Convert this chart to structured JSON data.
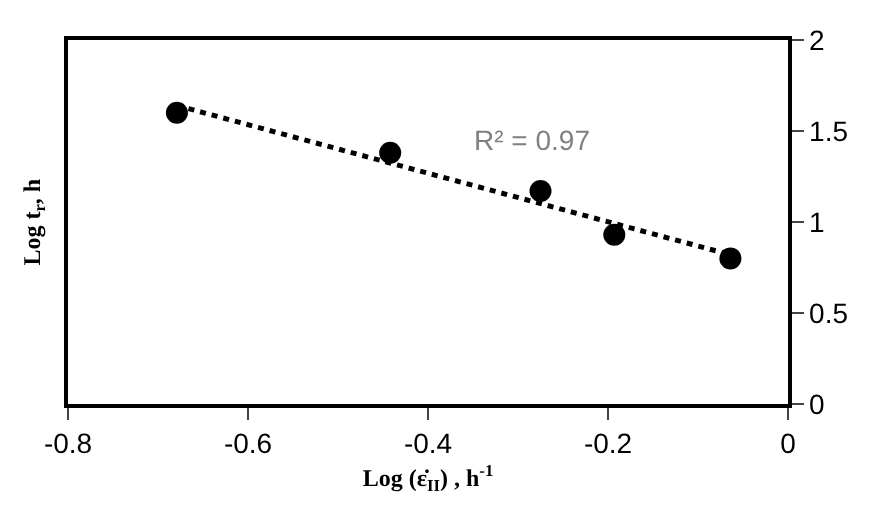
{
  "chart_data": {
    "type": "scatter",
    "xlabel": "Log (ε̇$_{II}$) , h$^{-1}$",
    "ylabel": "Log t$_{r}$, h",
    "series": [
      {
        "color": "#000000",
        "marker": "circle",
        "x": [
          -0.679,
          -0.442,
          -0.275,
          -0.193,
          -0.064
        ],
        "values": [
          1.6,
          1.38,
          1.17,
          0.93,
          0.8
        ]
      },
      {
        "type": "line",
        "color": "#000000",
        "line_style": "dotted",
        "marker": "none",
        "x": [
          -0.679,
          -0.064
        ],
        "values": [
          1.64,
          0.82
        ]
      }
    ],
    "annotations": [
      "R² = 0.97"
    ],
    "xlim": [
      -0.8,
      0
    ],
    "xticks": [
      -0.8,
      -0.6,
      -0.4,
      -0.2,
      0
    ],
    "ylim": [
      0,
      2
    ],
    "yticks": [
      0,
      0.5,
      1,
      1.5,
      2
    ]
  }
}
